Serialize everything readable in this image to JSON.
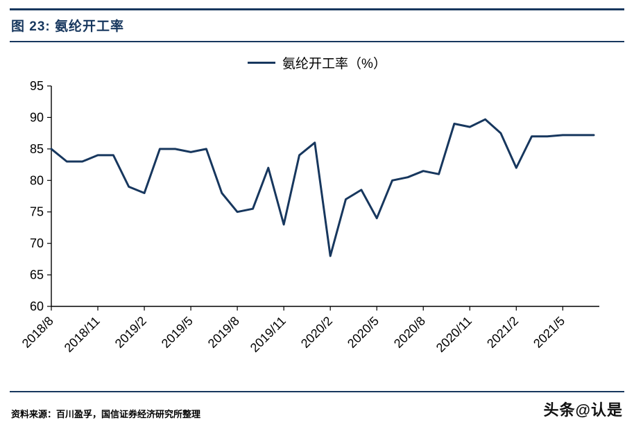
{
  "header": {
    "title": "图 23: 氨纶开工率"
  },
  "legend": {
    "label": "氨纶开工率（%）"
  },
  "footer": {
    "source": "资料来源：百川盈孚，国信证券经济研究所整理",
    "watermark": "头条@认是"
  },
  "colors": {
    "accent_navy": "#17375E",
    "line": "#17375E",
    "axis": "#000000"
  },
  "chart_data": {
    "type": "line",
    "title": "氨纶开工率",
    "legend_position": "top-center",
    "grid": false,
    "ylim": [
      60,
      95
    ],
    "y_tick_step": 5,
    "x_tick_step": 3,
    "x_tick_labels": [
      "2018/8",
      "2018/11",
      "2019/2",
      "2019/5",
      "2019/8",
      "2019/11",
      "2020/2",
      "2020/5",
      "2020/8",
      "2020/11",
      "2021/2",
      "2021/5"
    ],
    "categories": [
      "2018/8",
      "2018/9",
      "2018/10",
      "2018/11",
      "2018/12",
      "2019/1",
      "2019/2",
      "2019/3",
      "2019/4",
      "2019/5",
      "2019/6",
      "2019/7",
      "2019/8",
      "2019/9",
      "2019/10",
      "2019/11",
      "2019/12",
      "2020/1",
      "2020/2",
      "2020/3",
      "2020/4",
      "2020/5",
      "2020/6",
      "2020/7",
      "2020/8",
      "2020/9",
      "2020/10",
      "2020/11",
      "2020/12",
      "2021/1",
      "2021/2",
      "2021/3",
      "2021/4",
      "2021/5",
      "2021/6",
      "2021/7"
    ],
    "series": [
      {
        "name": "氨纶开工率（%）",
        "values": [
          85,
          83,
          83,
          84,
          84,
          79,
          78,
          85,
          85,
          84.5,
          85,
          78,
          75,
          75.5,
          82,
          73,
          84,
          86,
          68,
          77,
          78.5,
          74,
          80,
          80.5,
          81.5,
          81,
          89,
          88.5,
          89.7,
          87.5,
          82,
          87,
          87,
          87.2,
          87.2,
          87.2
        ]
      }
    ]
  }
}
